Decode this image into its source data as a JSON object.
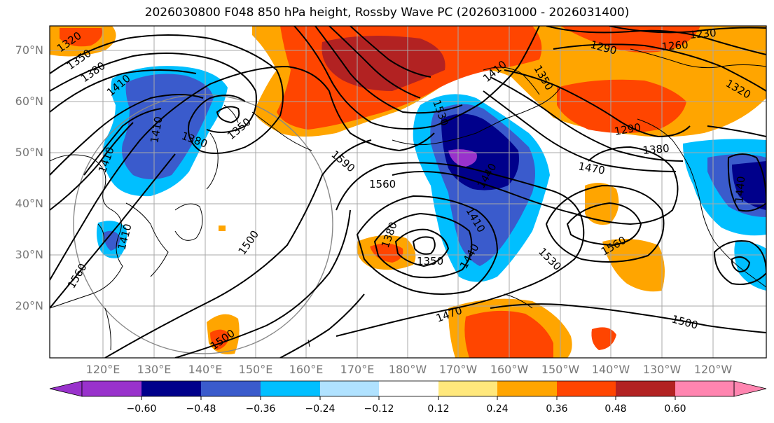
{
  "title": "2026030800 F048 850 hPa height, Rossby Wave PC (2026031000 - 2026031400)",
  "lat_labels": [
    "70°N",
    "60°N",
    "50°N",
    "40°N",
    "30°N",
    "20°N"
  ],
  "lon_labels": [
    "120°E",
    "130°E",
    "140°E",
    "150°E",
    "160°E",
    "170°E",
    "180°W",
    "170°W",
    "160°W",
    "150°W",
    "140°W",
    "130°W",
    "120°W"
  ],
  "contour_labels": [
    "1320",
    "1350",
    "1380",
    "1410",
    "1410",
    "1380",
    "1350",
    "1410",
    "1530",
    "1590",
    "1560",
    "1290",
    "1260",
    "1230",
    "1350",
    "1320",
    "1290",
    "1380",
    "1470",
    "1440",
    "1440",
    "1410",
    "1380",
    "1350",
    "1440",
    "1530",
    "1560",
    "1470",
    "1500",
    "1500",
    "1500",
    "1560",
    "1410",
    "1410"
  ],
  "colorbar": {
    "tick_labels": [
      "−0.60",
      "−0.48",
      "−0.36",
      "−0.24",
      "−0.12",
      "0.12",
      "0.24",
      "0.36",
      "0.48",
      "0.60"
    ],
    "colors": [
      "#9932cc",
      "#00008b",
      "#3a5bcc",
      "#00bfff",
      "#b0e2ff",
      "#ffffff",
      "#ffe87c",
      "#ffa500",
      "#ff4500",
      "#b22222",
      "#ff85b0"
    ]
  },
  "palette": {
    "contour": "#000000",
    "grid": "#a8a8a8",
    "coast": "#000000",
    "axis_text": "#777777"
  }
}
